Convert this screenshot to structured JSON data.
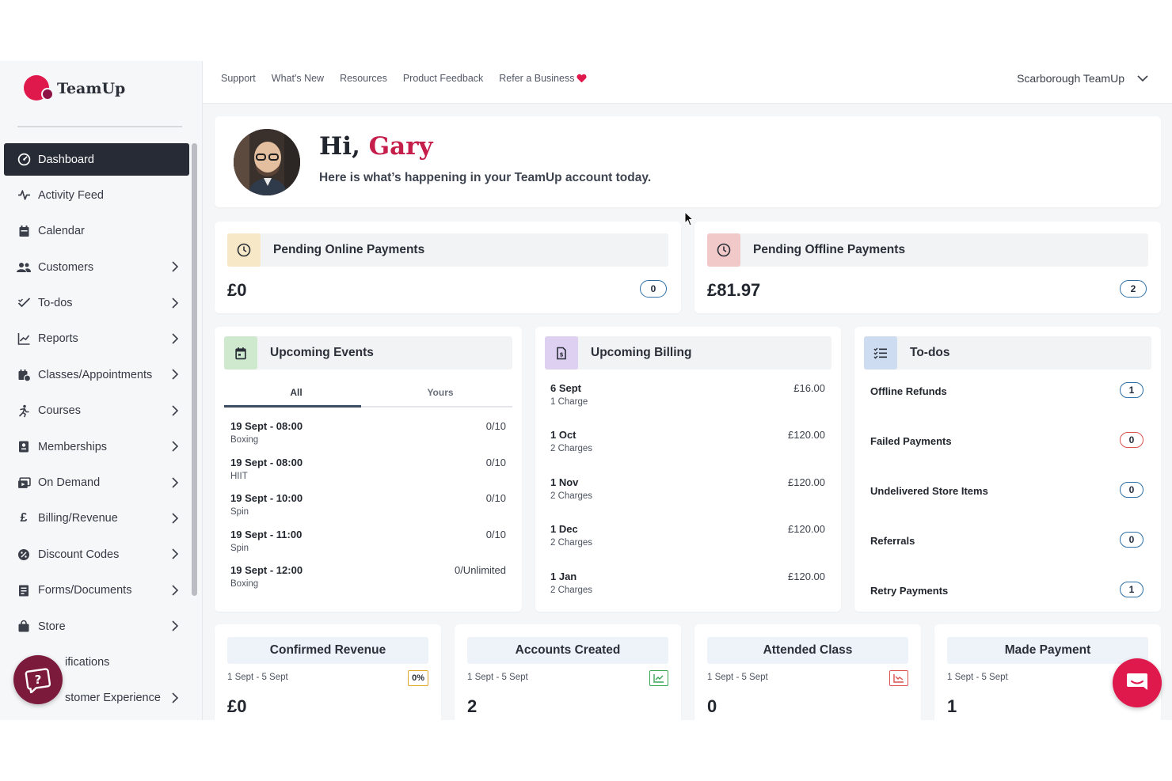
{
  "brand": {
    "name": "TeamUp",
    "accent": "#e0194d"
  },
  "sidebar": {
    "items": [
      {
        "label": "Dashboard",
        "icon": "dashboard-icon",
        "active": true,
        "chevron": false
      },
      {
        "label": "Activity Feed",
        "icon": "activity-icon",
        "chevron": false
      },
      {
        "label": "Calendar",
        "icon": "calendar-icon",
        "chevron": false
      },
      {
        "label": "Customers",
        "icon": "users-icon",
        "chevron": true
      },
      {
        "label": "To-dos",
        "icon": "check-list-icon",
        "chevron": true
      },
      {
        "label": "Reports",
        "icon": "chart-icon",
        "chevron": true
      },
      {
        "label": "Classes/Appointments",
        "icon": "calendar-check-icon",
        "chevron": true
      },
      {
        "label": "Courses",
        "icon": "runner-icon",
        "chevron": true
      },
      {
        "label": "Memberships",
        "icon": "badge-icon",
        "chevron": true
      },
      {
        "label": "On Demand",
        "icon": "video-icon",
        "chevron": true
      },
      {
        "label": "Billing/Revenue",
        "icon": "pound-icon",
        "chevron": true
      },
      {
        "label": "Discount Codes",
        "icon": "discount-icon",
        "chevron": true
      },
      {
        "label": "Forms/Documents",
        "icon": "document-icon",
        "chevron": true
      },
      {
        "label": "Store",
        "icon": "bag-icon",
        "chevron": true
      },
      {
        "label": "ifications",
        "icon": "bell-icon",
        "chevron": false
      },
      {
        "label": "stomer Experience",
        "icon": "star-icon",
        "chevron": true
      }
    ]
  },
  "topbar": {
    "links": [
      "Support",
      "What's New",
      "Resources",
      "Product Feedback",
      "Refer a Business"
    ],
    "account": "Scarborough TeamUp"
  },
  "greeting": {
    "hi": "Hi,",
    "name": "Gary",
    "subtitle": "Here is what’s happening in your TeamUp account today."
  },
  "payments": {
    "online": {
      "title": "Pending Online Payments",
      "amount": "£0",
      "count": "0",
      "icon_bg": "#f7e8c8"
    },
    "offline": {
      "title": "Pending Offline Payments",
      "amount": "£81.97",
      "count": "2",
      "icon_bg": "#f2c9c9"
    }
  },
  "upcoming_events": {
    "title": "Upcoming Events",
    "tabs": [
      "All",
      "Yours"
    ],
    "rows": [
      {
        "title": "19 Sept - 08:00",
        "sub": "Boxing",
        "capacity": "0/10"
      },
      {
        "title": "19 Sept - 08:00",
        "sub": "HIIT",
        "capacity": "0/10"
      },
      {
        "title": "19 Sept - 10:00",
        "sub": "Spin",
        "capacity": "0/10"
      },
      {
        "title": "19 Sept - 11:00",
        "sub": "Spin",
        "capacity": "0/10"
      },
      {
        "title": "19 Sept - 12:00",
        "sub": "Boxing",
        "capacity": "0/Unlimited"
      }
    ]
  },
  "upcoming_billing": {
    "title": "Upcoming Billing",
    "rows": [
      {
        "date": "6 Sept",
        "sub": "1 Charge",
        "amount": "£16.00"
      },
      {
        "date": "1 Oct",
        "sub": "2 Charges",
        "amount": "£120.00"
      },
      {
        "date": "1 Nov",
        "sub": "2 Charges",
        "amount": "£120.00"
      },
      {
        "date": "1 Dec",
        "sub": "2 Charges",
        "amount": "£120.00"
      },
      {
        "date": "1 Jan",
        "sub": "2 Charges",
        "amount": "£120.00"
      }
    ]
  },
  "todos": {
    "title": "To-dos",
    "rows": [
      {
        "label": "Offline Refunds",
        "count": "1",
        "color": "#2b6fa6"
      },
      {
        "label": "Failed Payments",
        "count": "0",
        "color": "#d9534f"
      },
      {
        "label": "Undelivered Store Items",
        "count": "0",
        "color": "#2b6fa6"
      },
      {
        "label": "Referrals",
        "count": "0",
        "color": "#2b6fa6"
      },
      {
        "label": "Retry Payments",
        "count": "1",
        "color": "#2b6fa6"
      }
    ]
  },
  "stats": [
    {
      "title": "Confirmed Revenue",
      "range": "1 Sept - 5 Sept",
      "badge": "0%",
      "badge_type": "text",
      "value": "£0"
    },
    {
      "title": "Accounts Created",
      "range": "1 Sept - 5 Sept",
      "badge_type": "trend-up",
      "value": "2"
    },
    {
      "title": "Attended Class",
      "range": "1 Sept - 5 Sept",
      "badge_type": "trend-down",
      "value": "0"
    },
    {
      "title": "Made Payment",
      "range": "1 Sept - 5 Sept",
      "badge_type": "none",
      "value": "1"
    }
  ]
}
